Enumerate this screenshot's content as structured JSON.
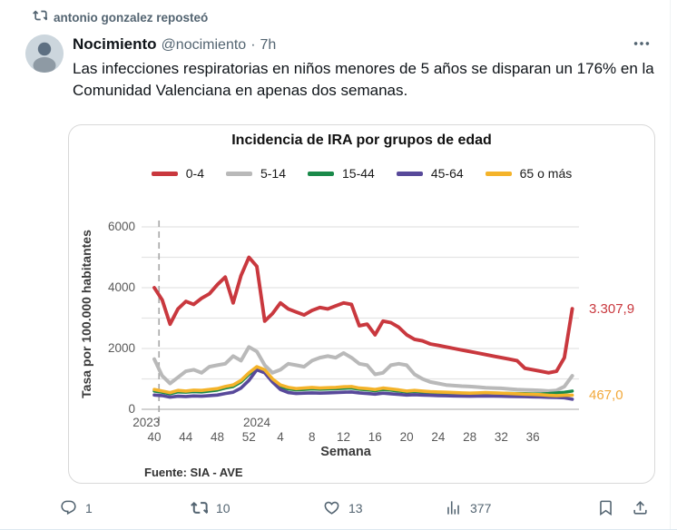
{
  "social": {
    "repost_text": "antonio gonzalez reposteó"
  },
  "tweet": {
    "author_name": "Nocimiento",
    "author_handle": "@nocimiento",
    "meta_separator": "·",
    "timestamp": "7h",
    "body": "Las infecciones respiratorias en niños menores de 5 años se disparan un 176% en la Comunidad Valenciana en apenas dos semanas."
  },
  "actions": {
    "reply_count": "1",
    "repost_count": "10",
    "like_count": "13",
    "view_count": "377"
  },
  "chart_data": {
    "type": "line",
    "title": "Incidencia de IRA por grupos de edad",
    "xlabel": "Semana",
    "ylabel": "Tasa por 100.000 habitantes",
    "source": "Fuente: SIA - AVE",
    "ylim": [
      0,
      6000
    ],
    "y_ticks": [
      0,
      2000,
      4000,
      6000
    ],
    "gridline_step": 1000,
    "grid": true,
    "legend_position": "top",
    "x_unit": "ISO week, 2023-W40 to 2024-W41",
    "weeks": [
      "40",
      "41",
      "42",
      "43",
      "44",
      "45",
      "46",
      "47",
      "48",
      "49",
      "50",
      "51",
      "52",
      "1",
      "2",
      "3",
      "4",
      "5",
      "6",
      "7",
      "8",
      "9",
      "10",
      "11",
      "12",
      "13",
      "14",
      "15",
      "16",
      "17",
      "18",
      "19",
      "20",
      "21",
      "22",
      "23",
      "24",
      "25",
      "26",
      "27",
      "28",
      "29",
      "30",
      "31",
      "32",
      "33",
      "34",
      "35",
      "36",
      "37",
      "38",
      "39",
      "40",
      "41"
    ],
    "x_ticks": [
      {
        "label": "40",
        "i": 0
      },
      {
        "label": "44",
        "i": 4
      },
      {
        "label": "48",
        "i": 8
      },
      {
        "label": "52",
        "i": 12
      },
      {
        "label": "4",
        "i": 16
      },
      {
        "label": "8",
        "i": 20
      },
      {
        "label": "12",
        "i": 24
      },
      {
        "label": "16",
        "i": 28
      },
      {
        "label": "20",
        "i": 32
      },
      {
        "label": "24",
        "i": 36
      },
      {
        "label": "28",
        "i": 40
      },
      {
        "label": "32",
        "i": 44
      },
      {
        "label": "36",
        "i": 48
      }
    ],
    "year_labels": [
      {
        "label": "2023",
        "i": -1
      },
      {
        "label": "2024",
        "i": 13
      }
    ],
    "dashed_line_i": 0.6,
    "series": [
      {
        "name": "5-14",
        "color": "#b9b9b9",
        "width": 4,
        "values": [
          1650,
          1100,
          850,
          1050,
          1250,
          1300,
          1200,
          1400,
          1450,
          1500,
          1750,
          1600,
          2050,
          1900,
          1450,
          1200,
          1300,
          1500,
          1450,
          1400,
          1600,
          1700,
          1750,
          1700,
          1850,
          1700,
          1500,
          1450,
          1150,
          1200,
          1450,
          1500,
          1450,
          1150,
          1000,
          900,
          850,
          800,
          780,
          760,
          750,
          730,
          710,
          700,
          690,
          670,
          650,
          640,
          630,
          620,
          600,
          620,
          750,
          1100
        ]
      },
      {
        "name": "15-44",
        "color": "#1a8a4a",
        "width": 3.4,
        "values": [
          600,
          560,
          510,
          570,
          560,
          580,
          570,
          600,
          630,
          700,
          750,
          900,
          1150,
          1350,
          1250,
          950,
          750,
          670,
          640,
          650,
          670,
          660,
          665,
          675,
          690,
          700,
          660,
          640,
          610,
          650,
          630,
          600,
          570,
          585,
          570,
          555,
          545,
          540,
          535,
          530,
          525,
          530,
          540,
          535,
          530,
          525,
          520,
          515,
          510,
          505,
          520,
          540,
          560,
          600
        ]
      },
      {
        "name": "45-64",
        "color": "#58499a",
        "width": 3.6,
        "values": [
          470,
          450,
          400,
          430,
          420,
          440,
          430,
          450,
          470,
          520,
          560,
          700,
          950,
          1300,
          1200,
          900,
          650,
          550,
          520,
          530,
          540,
          530,
          540,
          550,
          560,
          570,
          540,
          520,
          500,
          530,
          510,
          490,
          470,
          480,
          470,
          460,
          450,
          445,
          440,
          435,
          430,
          435,
          440,
          435,
          430,
          425,
          420,
          415,
          410,
          405,
          395,
          390,
          380,
          330
        ]
      },
      {
        "name": "65 o más",
        "color": "#f4b32a",
        "width": 3.6,
        "end_label": "467,0",
        "end_label_color": "#f2a93b",
        "values": [
          650,
          600,
          550,
          620,
          600,
          630,
          620,
          650,
          680,
          750,
          800,
          950,
          1200,
          1400,
          1300,
          1000,
          800,
          720,
          680,
          700,
          720,
          700,
          710,
          720,
          740,
          750,
          700,
          680,
          650,
          700,
          670,
          640,
          600,
          620,
          600,
          580,
          570,
          560,
          550,
          540,
          530,
          540,
          550,
          540,
          530,
          520,
          510,
          500,
          490,
          480,
          460,
          450,
          460,
          467
        ]
      },
      {
        "name": "0-4",
        "color": "#c9383e",
        "width": 3.9,
        "end_label": "3.307,9",
        "end_label_color": "#c9383e",
        "values": [
          4000,
          3600,
          2800,
          3300,
          3550,
          3450,
          3650,
          3800,
          4100,
          4350,
          3500,
          4400,
          5000,
          4700,
          2900,
          3150,
          3500,
          3300,
          3200,
          3100,
          3250,
          3350,
          3300,
          3400,
          3500,
          3450,
          2750,
          2800,
          2450,
          2900,
          2850,
          2700,
          2450,
          2300,
          2250,
          2150,
          2100,
          2050,
          2000,
          1950,
          1900,
          1850,
          1800,
          1750,
          1700,
          1650,
          1600,
          1350,
          1300,
          1250,
          1200,
          1250,
          1700,
          3307.9
        ]
      }
    ],
    "legend_order": [
      "0-4",
      "5-14",
      "15-44",
      "45-64",
      "65 o más"
    ]
  }
}
